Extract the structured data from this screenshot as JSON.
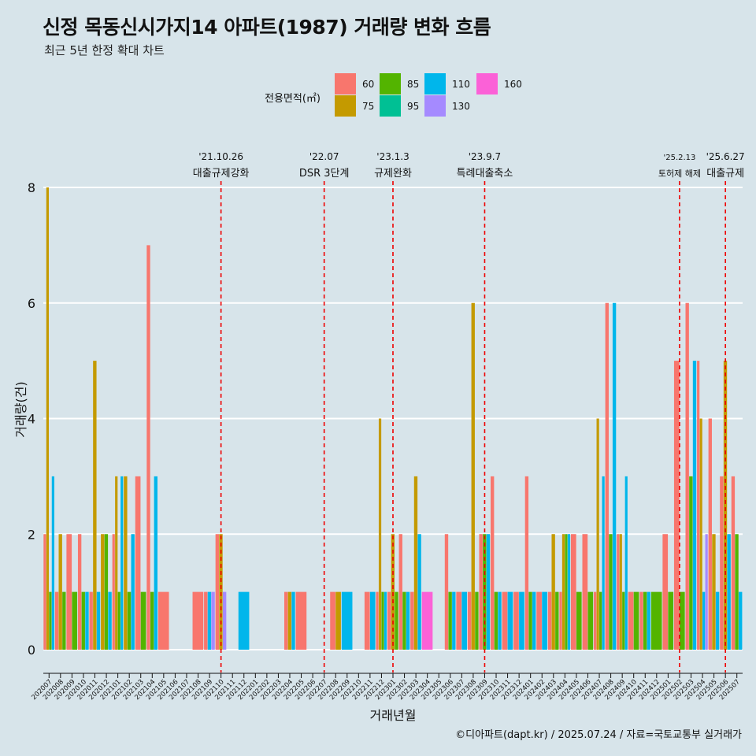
{
  "title": "신정 목동신시가지14 아파트(1987) 거래량 변화 흐름",
  "subtitle": "최근 5년 한정 확대 차트",
  "legend_title": "전용면적(㎡)",
  "caption": "©디아파트(dapt.kr) / 2025.07.24 / 자료=국토교통부 실거래가",
  "colors": {
    "background": "#d7e4ea",
    "grid": "#ffffff",
    "event_line": "#ee0000",
    "60": "#f8766d",
    "75": "#c49a00",
    "85": "#53b400",
    "95": "#00c094",
    "110": "#00b6eb",
    "130": "#a58aff",
    "160": "#fb61d7"
  },
  "chart_data": {
    "type": "bar",
    "xlabel": "거래년월",
    "ylabel": "거래량(건)",
    "ylim": [
      0,
      8
    ],
    "yticks": [
      0,
      2,
      4,
      6,
      8
    ],
    "grid": true,
    "legend_position": "top",
    "series_names": [
      "60",
      "75",
      "85",
      "95",
      "110",
      "130",
      "160"
    ],
    "categories": [
      "202007",
      "202008",
      "202009",
      "202010",
      "202011",
      "202012",
      "202101",
      "202102",
      "202103",
      "202104",
      "202105",
      "202106",
      "202107",
      "202108",
      "202109",
      "202110",
      "202111",
      "202112",
      "202201",
      "202202",
      "202203",
      "202204",
      "202205",
      "202206",
      "202207",
      "202208",
      "202209",
      "202210",
      "202211",
      "202212",
      "202301",
      "202302",
      "202303",
      "202304",
      "202305",
      "202306",
      "202307",
      "202308",
      "202309",
      "202310",
      "202311",
      "202312",
      "202401",
      "202402",
      "202403",
      "202404",
      "202405",
      "202406",
      "202407",
      "202408",
      "202409",
      "202410",
      "202411",
      "202412",
      "202501",
      "202502",
      "202503",
      "202504",
      "202505",
      "202506",
      "202507"
    ],
    "values": {
      "202007": {
        "60": 2,
        "75": 8,
        "85": 1,
        "110": 3
      },
      "202008": {
        "60": 1,
        "75": 2,
        "85": 1
      },
      "202009": {
        "60": 2,
        "85": 1
      },
      "202010": {
        "60": 2,
        "85": 1,
        "110": 1
      },
      "202011": {
        "60": 1,
        "75": 5,
        "110": 1
      },
      "202012": {
        "75": 2,
        "85": 2,
        "110": 1
      },
      "202101": {
        "60": 2,
        "75": 3,
        "85": 1,
        "110": 3
      },
      "202102": {
        "75": 3,
        "85": 1,
        "110": 2
      },
      "202103": {
        "60": 3,
        "85": 1
      },
      "202104": {
        "60": 7,
        "85": 1,
        "110": 3
      },
      "202105": {
        "60": 1
      },
      "202106": {},
      "202107": {},
      "202108": {
        "60": 1
      },
      "202109": {
        "60": 1,
        "110": 1,
        "130": 1
      },
      "202110": {
        "60": 2,
        "75": 2,
        "130": 1
      },
      "202111": {},
      "202112": {
        "110": 1
      },
      "202201": {},
      "202202": {},
      "202203": {},
      "202204": {
        "60": 1,
        "75": 1,
        "110": 1
      },
      "202205": {
        "60": 1
      },
      "202206": {},
      "202207": {},
      "202208": {
        "60": 1,
        "75": 1
      },
      "202209": {
        "110": 1
      },
      "202210": {},
      "202211": {
        "60": 1,
        "110": 1
      },
      "202212": {
        "60": 1,
        "75": 4,
        "85": 1,
        "110": 1
      },
      "202301": {
        "60": 1,
        "75": 2,
        "85": 1
      },
      "202302": {
        "60": 2,
        "85": 1,
        "110": 1
      },
      "202303": {
        "60": 1,
        "75": 3,
        "110": 2
      },
      "202304": {
        "160": 1
      },
      "202305": {},
      "202306": {
        "60": 2,
        "85": 1,
        "110": 1
      },
      "202307": {
        "60": 1,
        "110": 1
      },
      "202308": {
        "60": 1,
        "75": 6,
        "85": 1
      },
      "202309": {
        "60": 2,
        "85": 2,
        "110": 2
      },
      "202310": {
        "60": 3,
        "85": 1,
        "110": 1
      },
      "202311": {
        "60": 1,
        "110": 1
      },
      "202312": {
        "60": 1,
        "110": 1
      },
      "202401": {
        "60": 3,
        "85": 1,
        "110": 1
      },
      "202402": {
        "60": 1,
        "110": 1
      },
      "202403": {
        "60": 1,
        "75": 2,
        "85": 1
      },
      "202404": {
        "60": 1,
        "75": 2,
        "85": 2,
        "110": 2
      },
      "202405": {
        "60": 2,
        "85": 1
      },
      "202406": {
        "60": 2,
        "85": 1
      },
      "202407": {
        "60": 1,
        "75": 4,
        "85": 1,
        "110": 3
      },
      "202408": {
        "60": 6,
        "85": 2,
        "110": 6
      },
      "202409": {
        "60": 2,
        "75": 2,
        "85": 1,
        "110": 3
      },
      "202410": {
        "60": 1,
        "85": 1
      },
      "202411": {
        "60": 1,
        "85": 1,
        "110": 1
      },
      "202412": {
        "85": 1
      },
      "202501": {
        "60": 2,
        "85": 1
      },
      "202502": {
        "60": 5,
        "85": 1
      },
      "202503": {
        "60": 6,
        "85": 3,
        "110": 5
      },
      "202504": {
        "60": 5,
        "75": 4,
        "110": 1,
        "130": 2
      },
      "202505": {
        "60": 4,
        "75": 2,
        "110": 1
      },
      "202506": {
        "60": 3,
        "75": 5,
        "110": 2
      },
      "202507": {
        "60": 3,
        "85": 2,
        "110": 1
      }
    },
    "events": [
      {
        "month": "202110",
        "date": "'21.10.26",
        "label": "대출규제강화"
      },
      {
        "month": "202207",
        "date": "'22.07",
        "label": "DSR 3단계"
      },
      {
        "month": "202301",
        "date": "'23.1.3",
        "label": "규제완화"
      },
      {
        "month": "202309",
        "date": "'23.9.7",
        "label": "특례대출축소"
      },
      {
        "month": "202502",
        "date": "'25.2.13",
        "label": "토허제 해제"
      },
      {
        "month": "202506",
        "date": "'25.6.27",
        "label": "대출규제"
      }
    ]
  }
}
